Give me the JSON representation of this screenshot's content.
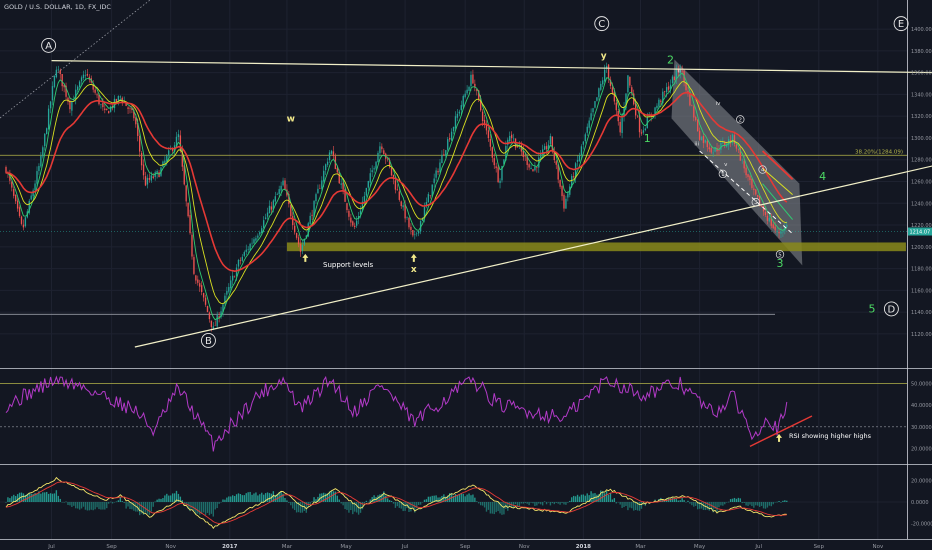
{
  "header": {
    "symbol_title": "GOLD / U.S. DOLLAR, 1D, FX_IDC"
  },
  "colors": {
    "background": "#131722",
    "candle_up": "#26a69a",
    "candle_down": "#ef5350",
    "ema_fast": "#2ecc71",
    "ema_mid": "#d9e021",
    "ema_slow": "#e53935",
    "trendline": "#f2f0c8",
    "support_zone": "#8a8a1a",
    "fib_line": "#b5b54a",
    "rsi": "#b23ac7",
    "macd_line": "#f5e66a",
    "signal_line": "#e53935",
    "histogram": "#26a69a",
    "wave_green": "#4cd964",
    "label_yellow": "#f2e98a"
  },
  "chart_data": [
    {
      "type": "candlestick",
      "title": "GOLD / U.S. DOLLAR, 1D, FX_IDC",
      "x_axis_labels": [
        "Jul",
        "Sep",
        "Nov",
        "2017",
        "Mar",
        "May",
        "Jul",
        "Sep",
        "Nov",
        "2018",
        "Mar",
        "May",
        "Jul",
        "Sep",
        "Nov"
      ],
      "y_ticks": [
        "1400.00",
        "1380.00",
        "1360.00",
        "1340.00",
        "1320.00",
        "1300.00",
        "1280.00",
        "1260.00",
        "1240.00",
        "1220.00",
        "1200.00",
        "1180.00",
        "1160.00",
        "1140.00",
        "1120.00"
      ],
      "ylim": [
        1108,
        1412
      ],
      "price_path": [
        {
          "date": "2016-05-15",
          "close": 1272
        },
        {
          "date": "2016-06-01",
          "close": 1215
        },
        {
          "date": "2016-06-20",
          "close": 1280
        },
        {
          "date": "2016-07-06",
          "close": 1366
        },
        {
          "date": "2016-07-20",
          "close": 1330
        },
        {
          "date": "2016-08-05",
          "close": 1360
        },
        {
          "date": "2016-08-25",
          "close": 1322
        },
        {
          "date": "2016-09-10",
          "close": 1338
        },
        {
          "date": "2016-09-25",
          "close": 1318
        },
        {
          "date": "2016-10-05",
          "close": 1258
        },
        {
          "date": "2016-10-20",
          "close": 1268
        },
        {
          "date": "2016-11-09",
          "close": 1302
        },
        {
          "date": "2016-11-25",
          "close": 1178
        },
        {
          "date": "2016-12-15",
          "close": 1124
        },
        {
          "date": "2017-01-10",
          "close": 1185
        },
        {
          "date": "2017-01-31",
          "close": 1215
        },
        {
          "date": "2017-02-25",
          "close": 1258
        },
        {
          "date": "2017-03-15",
          "close": 1196
        },
        {
          "date": "2017-04-15",
          "close": 1290
        },
        {
          "date": "2017-05-09",
          "close": 1215
        },
        {
          "date": "2017-06-06",
          "close": 1296
        },
        {
          "date": "2017-07-10",
          "close": 1205
        },
        {
          "date": "2017-08-10",
          "close": 1288
        },
        {
          "date": "2017-09-08",
          "close": 1357
        },
        {
          "date": "2017-10-06",
          "close": 1260
        },
        {
          "date": "2017-10-16",
          "close": 1305
        },
        {
          "date": "2017-11-10",
          "close": 1270
        },
        {
          "date": "2017-11-28",
          "close": 1298
        },
        {
          "date": "2017-12-12",
          "close": 1238
        },
        {
          "date": "2018-01-25",
          "close": 1366
        },
        {
          "date": "2018-02-08",
          "close": 1305
        },
        {
          "date": "2018-02-16",
          "close": 1356
        },
        {
          "date": "2018-03-01",
          "close": 1305
        },
        {
          "date": "2018-04-11",
          "close": 1365
        },
        {
          "date": "2018-05-01",
          "close": 1302
        },
        {
          "date": "2018-05-15",
          "close": 1288
        },
        {
          "date": "2018-06-05",
          "close": 1300
        },
        {
          "date": "2018-06-25",
          "close": 1250
        },
        {
          "date": "2018-07-20",
          "close": 1212
        },
        {
          "date": "2018-07-31",
          "close": 1220
        }
      ],
      "last_price_label": "1214.07",
      "lines": {
        "upper_trendline": {
          "from": {
            "date": "2016-07-01",
            "price": 1371
          },
          "to": {
            "date": "2018-12-31",
            "price": 1360
          }
        },
        "lower_trendline": {
          "from": {
            "date": "2016-09-25",
            "price": 1108
          },
          "to": {
            "date": "2018-12-31",
            "price": 1275
          }
        },
        "fib_level": {
          "price": 1284.09,
          "label": "38.20%(1284.09)"
        },
        "lower_horizontal": {
          "price": 1138
        },
        "channel_projection": {
          "from": {
            "date": "2018-05-01",
            "price": 1288
          },
          "to": {
            "date": "2018-08-05",
            "price": 1212
          }
        }
      },
      "support_zone": {
        "from": "2017-03-01",
        "to": "2018-11-30",
        "price_low": 1196,
        "price_high": 1204,
        "label": "Support levels"
      },
      "wave_labels": [
        {
          "text": "A",
          "date": "2016-06-28",
          "price": 1385,
          "circled": true,
          "color": "white"
        },
        {
          "text": "B",
          "date": "2016-12-10",
          "price": 1114,
          "circled": true,
          "color": "white"
        },
        {
          "text": "C",
          "date": "2018-01-20",
          "price": 1405,
          "circled": true,
          "color": "white"
        },
        {
          "text": "E",
          "date": "2018-11-25",
          "price": 1405,
          "circled": true,
          "color": "white"
        },
        {
          "text": "D",
          "date": "2018-11-15",
          "price": 1143,
          "circled": true,
          "color": "white"
        },
        {
          "text": "w",
          "date": "2017-03-05",
          "price": 1318,
          "circled": false,
          "color": "yellow"
        },
        {
          "text": "x",
          "date": "2017-07-10",
          "price": 1180,
          "circled": false,
          "color": "yellow"
        },
        {
          "text": "y",
          "date": "2018-01-22",
          "price": 1376,
          "circled": false,
          "color": "yellow"
        },
        {
          "text": "1",
          "date": "2018-03-08",
          "price": 1300,
          "circled": false,
          "color": "green"
        },
        {
          "text": "2",
          "date": "2018-04-01",
          "price": 1372,
          "circled": false,
          "color": "green"
        },
        {
          "text": "3",
          "date": "2018-07-23",
          "price": 1185,
          "circled": false,
          "color": "green"
        },
        {
          "text": "4",
          "date": "2018-09-05",
          "price": 1265,
          "circled": false,
          "color": "green"
        },
        {
          "text": "5",
          "date": "2018-10-26",
          "price": 1143,
          "circled": false,
          "color": "green"
        },
        {
          "text": "ii",
          "date": "2018-04-10",
          "price": 1362,
          "circled": false,
          "color": "small"
        },
        {
          "text": "iii",
          "date": "2018-04-28",
          "price": 1295,
          "circled": false,
          "color": "small"
        },
        {
          "text": "iv",
          "date": "2018-05-20",
          "price": 1332,
          "circled": false,
          "color": "small"
        },
        {
          "text": "v",
          "date": "2018-05-28",
          "price": 1276,
          "circled": false,
          "color": "small"
        },
        {
          "text": "1",
          "date": "2018-05-25",
          "price": 1267,
          "circled": true,
          "color": "small"
        },
        {
          "text": "2",
          "date": "2018-06-12",
          "price": 1317,
          "circled": true,
          "color": "small"
        },
        {
          "text": "3",
          "date": "2018-06-28",
          "price": 1241,
          "circled": true,
          "color": "small"
        },
        {
          "text": "4",
          "date": "2018-07-05",
          "price": 1271,
          "circled": true,
          "color": "small"
        },
        {
          "text": "5",
          "date": "2018-07-23",
          "price": 1193,
          "circled": true,
          "color": "small"
        }
      ],
      "support_arrows": [
        {
          "date": "2017-03-20",
          "price": 1188
        },
        {
          "date": "2017-07-10",
          "price": 1188
        }
      ]
    },
    {
      "type": "line",
      "name_hint": "RSI",
      "y_ticks": [
        "50.0000",
        "40.0000",
        "30.0000",
        "20.0000"
      ],
      "ylim": [
        17,
        53
      ],
      "levels": [
        50,
        30
      ],
      "values_path": [
        {
          "date": "2016-05-15",
          "value": 40
        },
        {
          "date": "2016-07-06",
          "value": 52
        },
        {
          "date": "2016-08-05",
          "value": 48
        },
        {
          "date": "2016-09-25",
          "value": 38
        },
        {
          "date": "2016-10-15",
          "value": 28
        },
        {
          "date": "2016-11-09",
          "value": 48
        },
        {
          "date": "2016-12-15",
          "value": 22
        },
        {
          "date": "2017-01-31",
          "value": 45
        },
        {
          "date": "2017-02-25",
          "value": 52
        },
        {
          "date": "2017-03-15",
          "value": 38
        },
        {
          "date": "2017-04-15",
          "value": 52
        },
        {
          "date": "2017-05-09",
          "value": 37
        },
        {
          "date": "2017-06-06",
          "value": 50
        },
        {
          "date": "2017-07-10",
          "value": 32
        },
        {
          "date": "2017-09-08",
          "value": 52
        },
        {
          "date": "2017-10-06",
          "value": 40
        },
        {
          "date": "2017-12-12",
          "value": 34
        },
        {
          "date": "2018-01-25",
          "value": 52
        },
        {
          "date": "2018-03-01",
          "value": 45
        },
        {
          "date": "2018-04-11",
          "value": 50
        },
        {
          "date": "2018-05-15",
          "value": 36
        },
        {
          "date": "2018-06-05",
          "value": 44
        },
        {
          "date": "2018-06-25",
          "value": 26
        },
        {
          "date": "2018-07-10",
          "value": 35
        },
        {
          "date": "2018-07-20",
          "value": 29
        },
        {
          "date": "2018-07-31",
          "value": 39
        }
      ],
      "trendline": {
        "from": {
          "date": "2018-06-22",
          "value": 21
        },
        "to": {
          "date": "2018-08-25",
          "value": 35
        }
      },
      "annotation": {
        "text": "RSI showing higher highs",
        "date": "2018-07-22",
        "value": 24
      }
    },
    {
      "type": "line",
      "name_hint": "MACD",
      "y_ticks": [
        "20.0000",
        "0.0000",
        "-20.0000"
      ],
      "ylim": [
        -30,
        30
      ],
      "macd_path": [
        {
          "date": "2016-05-15",
          "value": -4
        },
        {
          "date": "2016-07-06",
          "value": 22
        },
        {
          "date": "2016-08-25",
          "value": 2
        },
        {
          "date": "2016-09-10",
          "value": 6
        },
        {
          "date": "2016-10-10",
          "value": -14
        },
        {
          "date": "2016-11-09",
          "value": 2
        },
        {
          "date": "2016-12-15",
          "value": -24
        },
        {
          "date": "2017-02-25",
          "value": 10
        },
        {
          "date": "2017-03-20",
          "value": -6
        },
        {
          "date": "2017-04-20",
          "value": 12
        },
        {
          "date": "2017-05-15",
          "value": -6
        },
        {
          "date": "2017-06-10",
          "value": 8
        },
        {
          "date": "2017-07-12",
          "value": -8
        },
        {
          "date": "2017-09-10",
          "value": 16
        },
        {
          "date": "2017-10-10",
          "value": -4
        },
        {
          "date": "2017-12-15",
          "value": -10
        },
        {
          "date": "2018-01-28",
          "value": 12
        },
        {
          "date": "2018-03-01",
          "value": -2
        },
        {
          "date": "2018-04-15",
          "value": 6
        },
        {
          "date": "2018-05-20",
          "value": -10
        },
        {
          "date": "2018-06-10",
          "value": -4
        },
        {
          "date": "2018-07-10",
          "value": -14
        },
        {
          "date": "2018-07-31",
          "value": -12
        }
      ]
    }
  ]
}
